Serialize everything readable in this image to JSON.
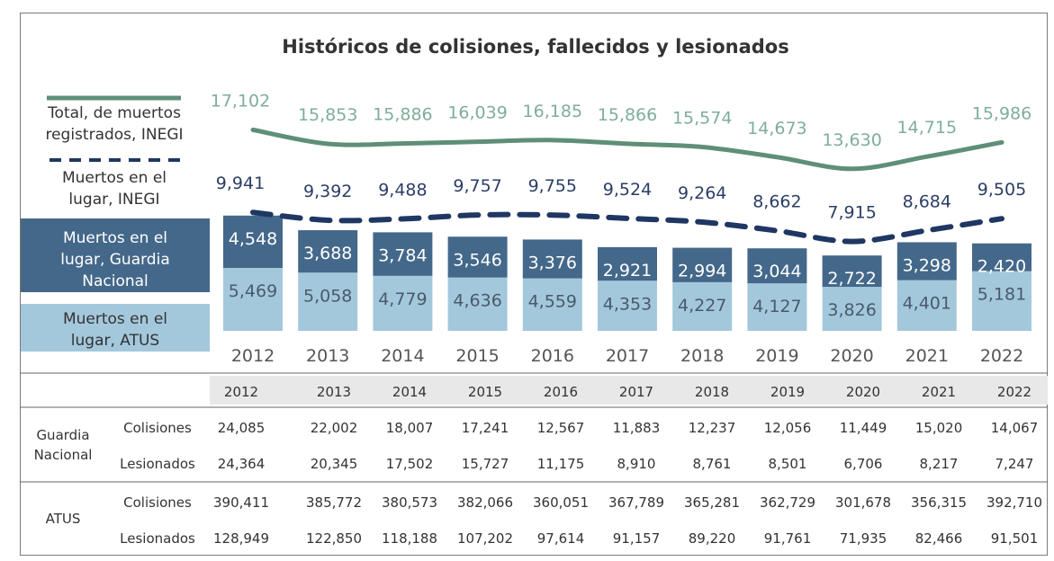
{
  "chart_data": {
    "type": "bar",
    "title": "Históricos de colisiones, fallecidos y lesionados",
    "categories": [
      "2012",
      "2013",
      "2014",
      "2015",
      "2016",
      "2017",
      "2018",
      "2019",
      "2020",
      "2021",
      "2022"
    ],
    "series": [
      {
        "name": "Total, de muertos registrados, INEGI",
        "kind": "line",
        "style": "solid",
        "color": "#5e8f77",
        "values": [
          17102,
          15853,
          15886,
          16039,
          16185,
          15866,
          15574,
          14673,
          13630,
          14715,
          15986
        ],
        "labels": [
          "17,102",
          "15,853",
          "15,886",
          "16,039",
          "16,185",
          "15,866",
          "15,574",
          "14,673",
          "13,630",
          "14,715",
          "15,986"
        ]
      },
      {
        "name": "Muertos en el lugar, INEGI",
        "kind": "line",
        "style": "dashed",
        "color": "#1f3763",
        "values": [
          9941,
          9392,
          9488,
          9757,
          9755,
          9524,
          9264,
          8662,
          7915,
          8684,
          9505
        ],
        "labels": [
          "9,941",
          "9,392",
          "9,488",
          "9,757",
          "9,755",
          "9,524",
          "9,264",
          "8,662",
          "7,915",
          "8,684",
          "9,505"
        ]
      },
      {
        "name": "Muertos en el lugar, Guardia Nacional",
        "kind": "bar",
        "color": "#44688a",
        "values": [
          4548,
          3688,
          3784,
          3546,
          3376,
          2921,
          2994,
          3044,
          2722,
          3298,
          2420
        ],
        "labels": [
          "4,548",
          "3,688",
          "3,784",
          "3,546",
          "3,376",
          "2,921",
          "2,994",
          "3,044",
          "2,722",
          "3,298",
          "2,420"
        ]
      },
      {
        "name": "Muertos en el lugar, ATUS",
        "kind": "bar",
        "color": "#a3c8dc",
        "values": [
          5469,
          5058,
          4779,
          4636,
          4559,
          4353,
          4227,
          4127,
          3826,
          4401,
          5181
        ],
        "labels": [
          "5,469",
          "5,058",
          "4,779",
          "4,636",
          "4,559",
          "4,353",
          "4,227",
          "4,127",
          "3,826",
          "4,401",
          "5,181"
        ]
      }
    ],
    "legend": {
      "total": [
        "Total, de muertos",
        "registrados, INEGI"
      ],
      "lugar_inegi": [
        "Muertos en el",
        "lugar, INEGI"
      ],
      "guardia": [
        "Muertos en el",
        "lugar, Guardia",
        "Nacional"
      ],
      "atus": [
        "Muertos en el",
        "lugar, ATUS"
      ]
    }
  },
  "table": {
    "years": [
      "2012",
      "2013",
      "2014",
      "2015",
      "2016",
      "2017",
      "2018",
      "2019",
      "2020",
      "2021",
      "2022"
    ],
    "groups": [
      {
        "name_lines": [
          "Guardia",
          "Nacional"
        ],
        "rows": [
          {
            "label": "Colisiones",
            "values": [
              "24,085",
              "22,002",
              "18,007",
              "17,241",
              "12,567",
              "11,883",
              "12,237",
              "12,056",
              "11,449",
              "15,020",
              "14,067"
            ]
          },
          {
            "label": "Lesionados",
            "values": [
              "24,364",
              "20,345",
              "17,502",
              "15,727",
              "11,175",
              "8,910",
              "8,761",
              "8,501",
              "6,706",
              "8,217",
              "7,247"
            ]
          }
        ]
      },
      {
        "name_lines": [
          "ATUS"
        ],
        "rows": [
          {
            "label": "Colisiones",
            "values": [
              "390,411",
              "385,772",
              "380,573",
              "382,066",
              "360,051",
              "367,789",
              "365,281",
              "362,729",
              "301,678",
              "356,315",
              "392,710"
            ]
          },
          {
            "label": "Lesionados",
            "values": [
              "128,949",
              "122,850",
              "118,188",
              "107,202",
              "97,614",
              "91,157",
              "89,220",
              "91,761",
              "71,935",
              "82,466",
              "91,501"
            ]
          }
        ]
      }
    ]
  }
}
